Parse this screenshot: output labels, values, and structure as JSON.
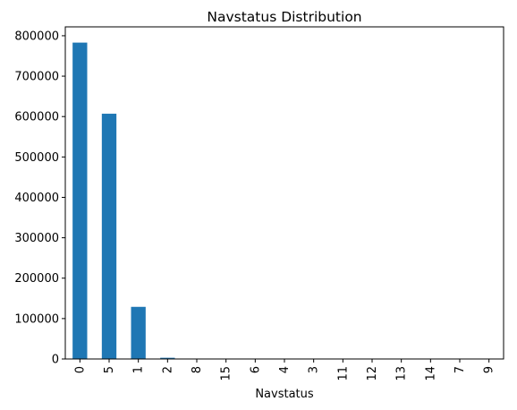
{
  "chart_data": {
    "type": "bar",
    "title": "Navstatus Distribution",
    "xlabel": "Navstatus",
    "ylabel": "",
    "categories": [
      "0",
      "5",
      "1",
      "2",
      "8",
      "15",
      "6",
      "4",
      "3",
      "11",
      "12",
      "13",
      "14",
      "7",
      "9"
    ],
    "values": [
      783000,
      607000,
      129000,
      3000,
      400,
      200,
      150,
      100,
      80,
      60,
      40,
      30,
      20,
      10,
      5
    ],
    "ylim": [
      0,
      822000
    ],
    "yticks": [
      0,
      100000,
      200000,
      300000,
      400000,
      500000,
      600000,
      700000,
      800000
    ],
    "grid": false,
    "legend": "none",
    "bar_color": "#1f77b4"
  }
}
